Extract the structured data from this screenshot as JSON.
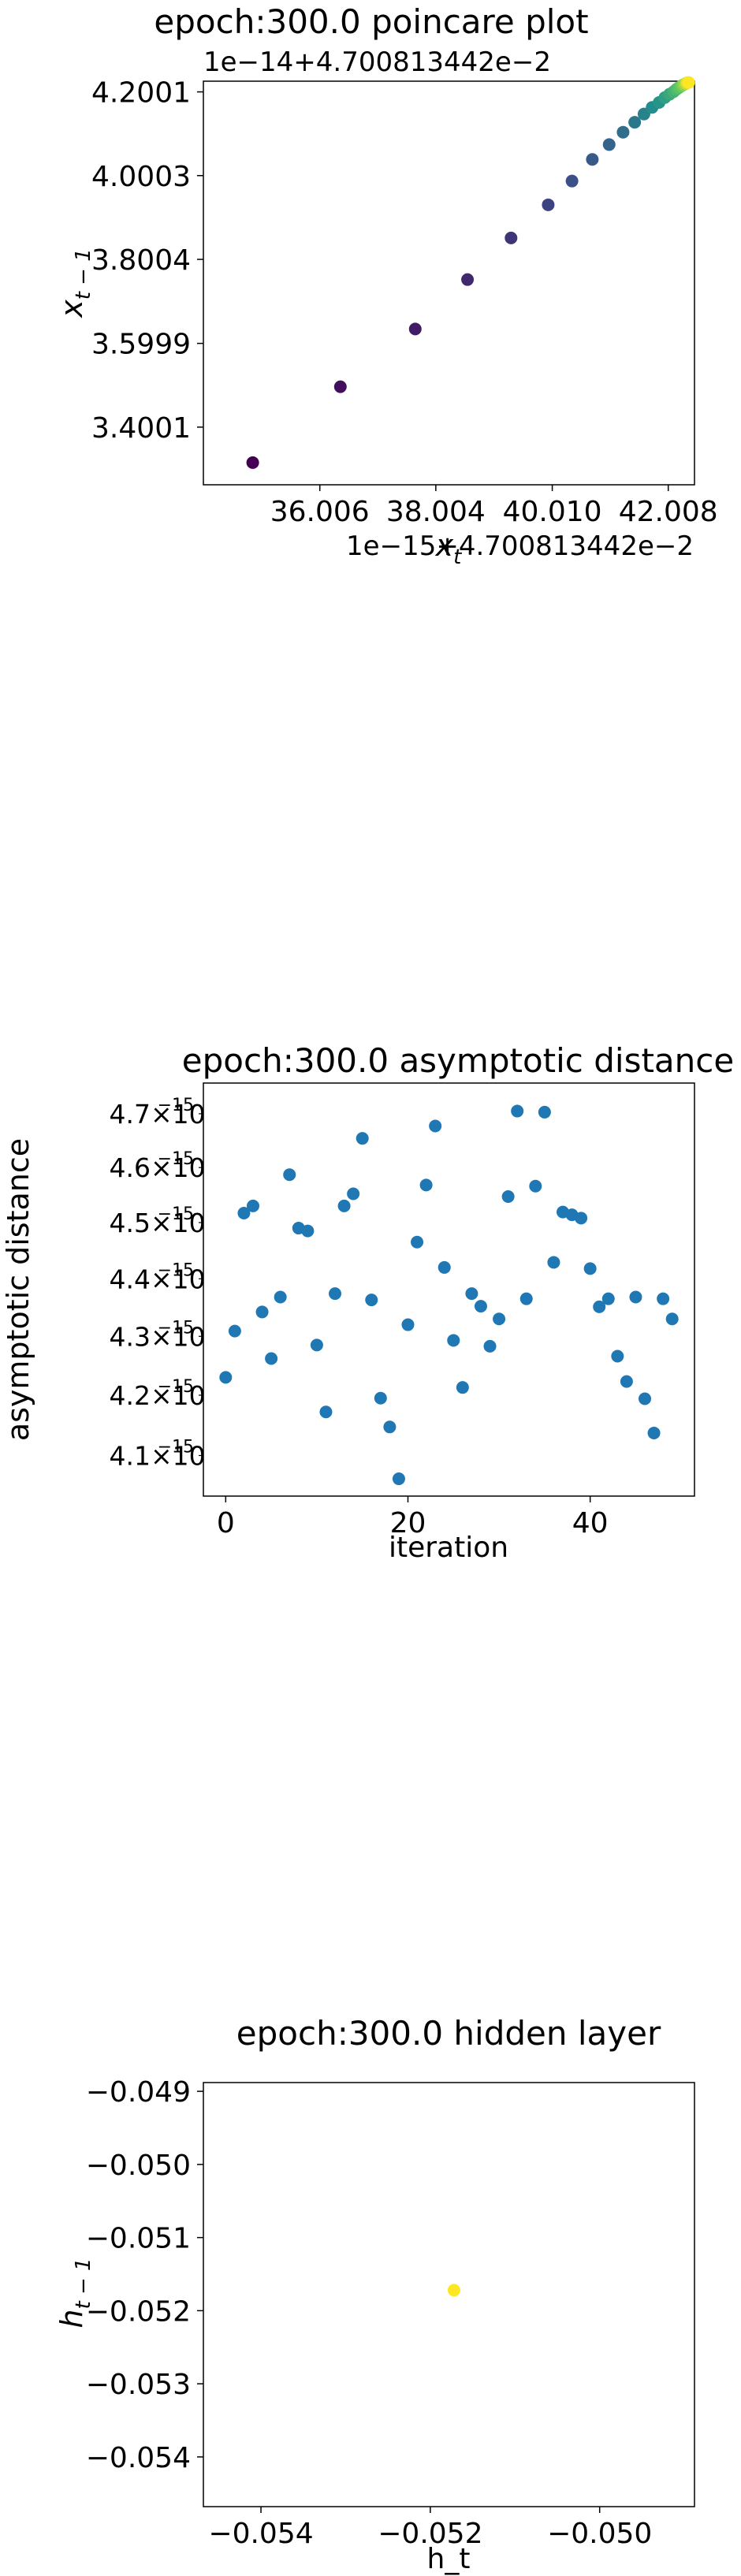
{
  "chart_data": [
    {
      "type": "scatter",
      "title": "epoch:300.0 poincare plot",
      "xlabel": "x_t",
      "ylabel": "x_{t-1}",
      "x_offset_text": "1e−15+4.700813442e−2",
      "y_offset_text": "1e−14+4.700813442e−2",
      "xticks": [
        36.006,
        38.004,
        40.01,
        42.008
      ],
      "xtick_labels": [
        "36.006",
        "38.004",
        "40.010",
        "42.008"
      ],
      "yticks": [
        3.4001,
        3.5999,
        3.8004,
        4.0003,
        4.2001
      ],
      "ytick_labels": [
        "3.4001",
        "3.5999",
        "3.8004",
        "4.0003",
        "4.2001"
      ],
      "xlim": [
        34.0,
        42.46
      ],
      "ylim": [
        3.2625,
        4.2256
      ],
      "colormap": "viridis",
      "colors": [
        "#440154",
        "#3b528b",
        "#21918c",
        "#5ec962",
        "#fde725"
      ],
      "points": [
        {
          "x": 34.85,
          "y": 3.3154
        },
        {
          "x": 36.36,
          "y": 3.4965
        },
        {
          "x": 37.65,
          "y": 3.6343
        },
        {
          "x": 38.55,
          "y": 3.7522
        },
        {
          "x": 39.3,
          "y": 3.8515
        },
        {
          "x": 39.94,
          "y": 3.9306
        },
        {
          "x": 40.35,
          "y": 3.9873
        },
        {
          "x": 40.7,
          "y": 4.0389
        },
        {
          "x": 40.99,
          "y": 4.0743
        },
        {
          "x": 41.23,
          "y": 4.1039
        },
        {
          "x": 41.43,
          "y": 4.1275
        },
        {
          "x": 41.59,
          "y": 4.1472
        },
        {
          "x": 41.73,
          "y": 4.163
        },
        {
          "x": 41.85,
          "y": 4.1748
        },
        {
          "x": 41.95,
          "y": 4.1866
        },
        {
          "x": 42.03,
          "y": 4.1945
        },
        {
          "x": 42.1,
          "y": 4.2004
        },
        {
          "x": 42.15,
          "y": 4.2063
        },
        {
          "x": 42.19,
          "y": 4.2102
        },
        {
          "x": 42.23,
          "y": 4.2138
        },
        {
          "x": 42.26,
          "y": 4.2165
        },
        {
          "x": 42.29,
          "y": 4.2185
        },
        {
          "x": 42.31,
          "y": 4.2201
        },
        {
          "x": 42.33,
          "y": 4.2213
        },
        {
          "x": 42.34,
          "y": 4.2221
        },
        {
          "x": 42.36,
          "y": 4.2226
        }
      ]
    },
    {
      "type": "scatter",
      "title": "epoch:300.0 asymptotic distance",
      "xlabel": "iteration",
      "ylabel": "asymptotic distance",
      "yscale": "log",
      "xticks": [
        0,
        20,
        40
      ],
      "xtick_labels": [
        "0",
        "20",
        "40"
      ],
      "ytick_mantissas": [
        "4.1",
        "4.2",
        "4.3",
        "4.4",
        "4.5",
        "4.6",
        "4.7"
      ],
      "ytick_values": [
        4.1e-15,
        4.2e-15,
        4.3e-15,
        4.4e-15,
        4.5e-15,
        4.6e-15,
        4.7e-15
      ],
      "ytick_suffix": "×10",
      "ytick_exponent": "−15",
      "xlim": [
        -2.45,
        51.45
      ],
      "ylim": [
        4.034e-15,
        4.758e-15
      ],
      "color": "#1f77b4",
      "values": [
        4.23e-15,
        4.309e-15,
        4.517e-15,
        4.53e-15,
        4.342e-15,
        4.262e-15,
        4.368e-15,
        4.587e-15,
        4.49e-15,
        4.485e-15,
        4.285e-15,
        4.172e-15,
        4.374e-15,
        4.53e-15,
        4.552e-15,
        4.654e-15,
        4.363e-15,
        4.195e-15,
        4.147e-15,
        4.062e-15,
        4.32e-15,
        4.465e-15,
        4.568e-15,
        4.677e-15,
        4.42e-15,
        4.293e-15,
        4.213e-15,
        4.374e-15,
        4.352e-15,
        4.283e-15,
        4.33e-15,
        4.547e-15,
        4.705e-15,
        4.365e-15,
        4.566e-15,
        4.703e-15,
        4.429e-15,
        4.519e-15,
        4.514e-15,
        4.508e-15,
        4.418e-15,
        4.351e-15,
        4.365e-15,
        4.266e-15,
        4.223e-15,
        4.368e-15,
        4.194e-15,
        4.137e-15,
        4.365e-15,
        4.33e-15
      ]
    },
    {
      "type": "scatter",
      "title": "epoch:300.0 hidden layer",
      "xlabel": "h_t",
      "ylabel": "h_{t-1}",
      "xticks": [
        -0.054,
        -0.052,
        -0.05
      ],
      "xtick_labels": [
        "−0.054",
        "−0.052",
        "−0.050"
      ],
      "yticks": [
        -0.049,
        -0.05,
        -0.051,
        -0.052,
        -0.053,
        -0.054
      ],
      "ytick_labels": [
        "−0.049",
        "−0.050",
        "−0.051",
        "−0.052",
        "−0.053",
        "−0.054"
      ],
      "xlim": [
        -0.05468,
        -0.04888
      ],
      "ylim": [
        -0.05468,
        -0.04888
      ],
      "color": "#fde725",
      "points": [
        {
          "x": -0.05172,
          "y": -0.05172
        }
      ]
    }
  ]
}
